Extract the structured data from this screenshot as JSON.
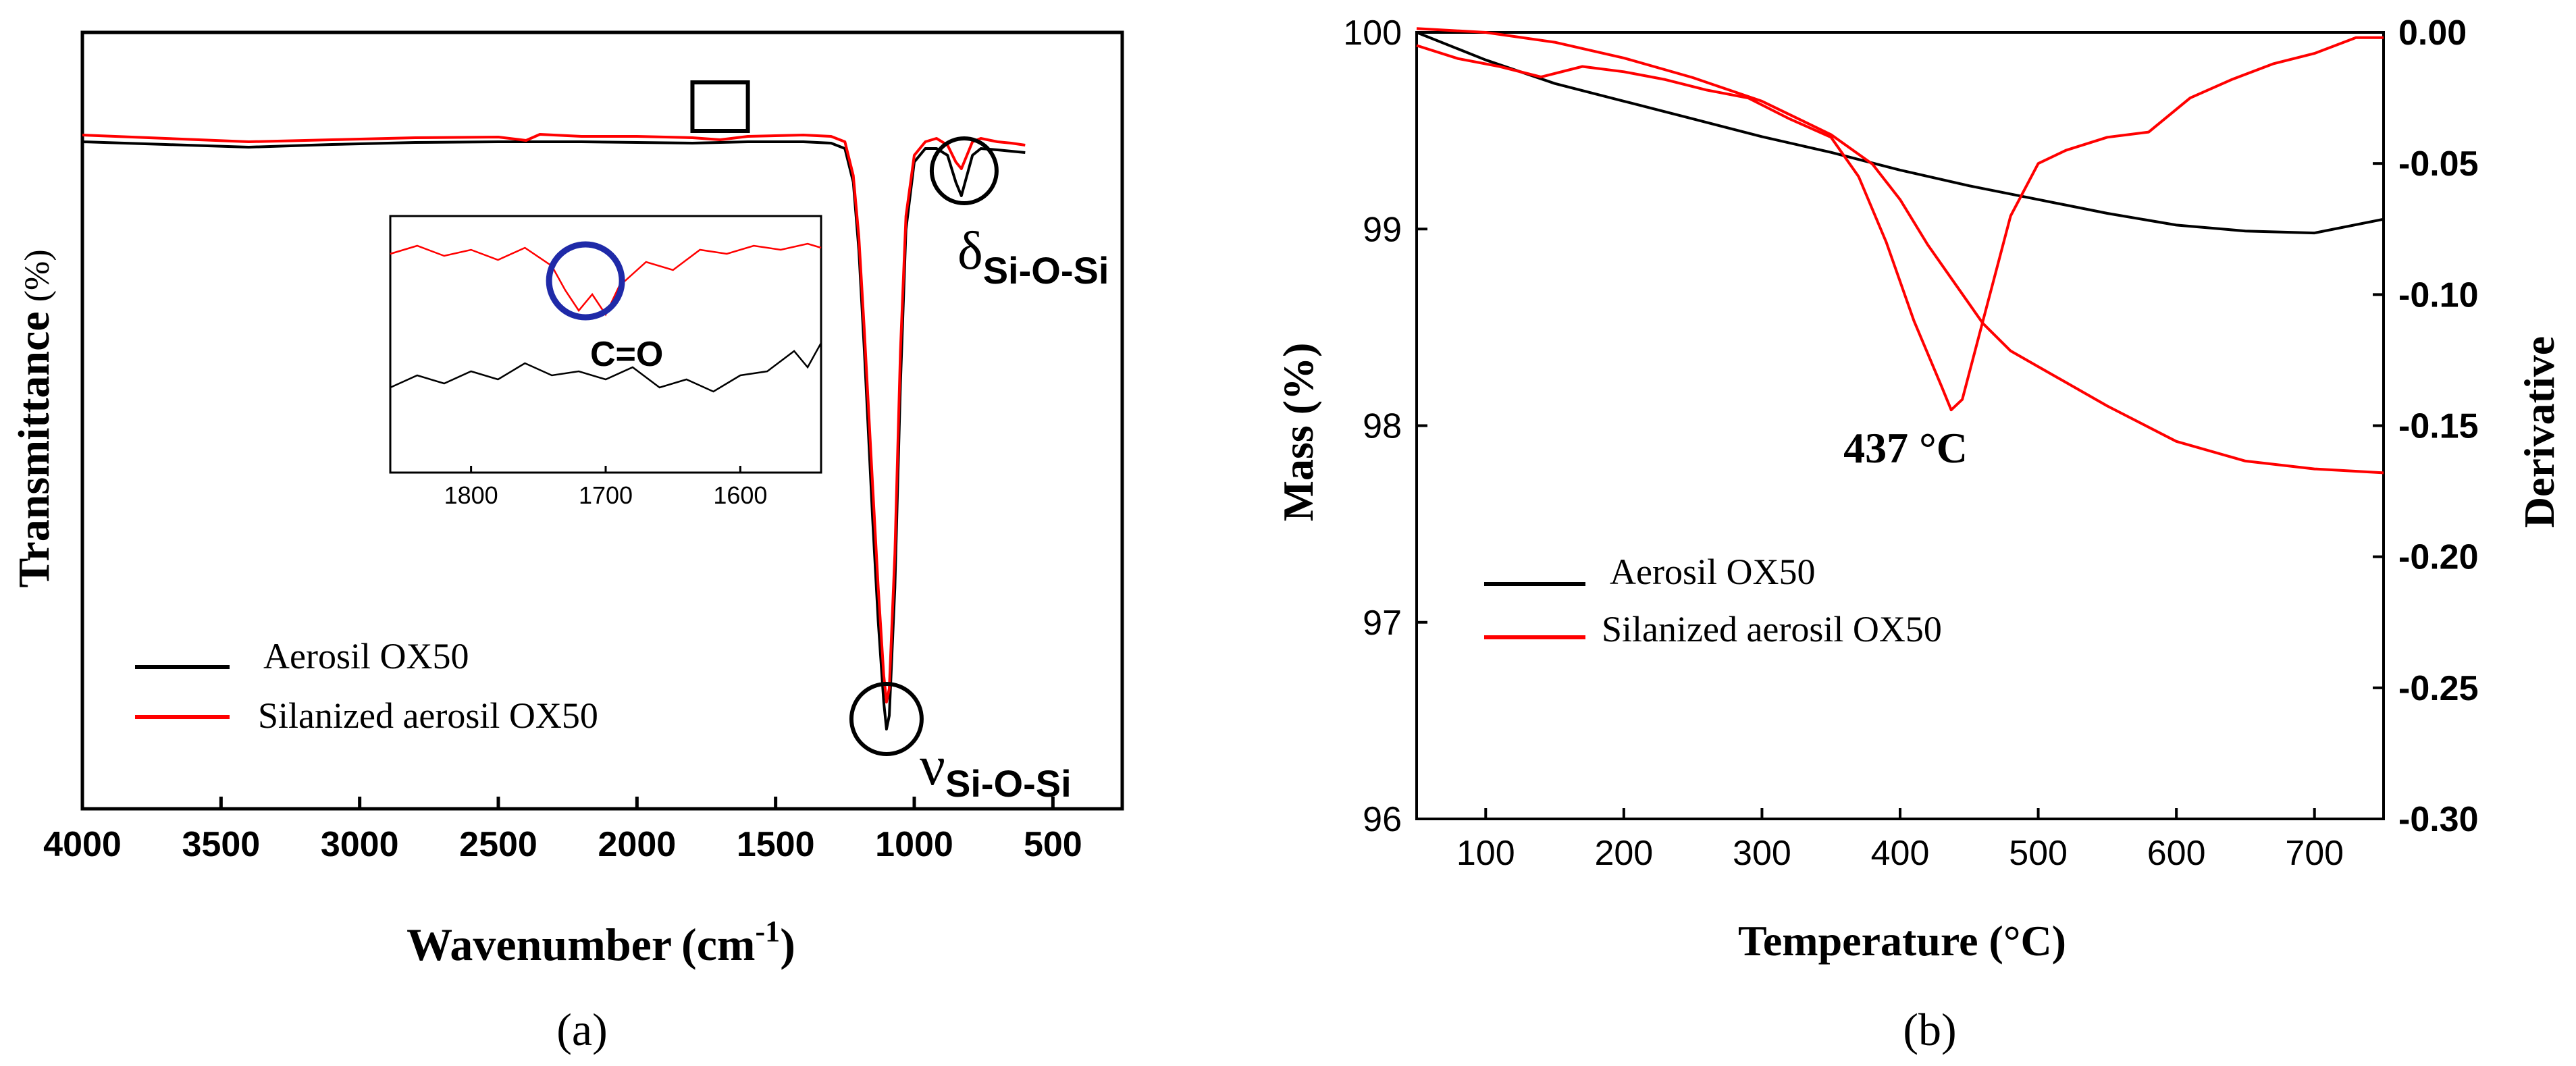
{
  "chart_data": [
    {
      "type": "line",
      "panel_label": "(a)",
      "title": "",
      "xlabel": "Wavenumber",
      "xlabel_unit": "(cm",
      "xlabel_unit_sup": "-1",
      "xlabel_unit_close": ")",
      "ylabel": "Transmittance",
      "ylabel_unit": "(%)",
      "xlim": [
        4000,
        250
      ],
      "ylim": [
        0,
        100
      ],
      "x_ticks": [
        4000,
        3500,
        3000,
        2500,
        2000,
        1500,
        1000,
        500
      ],
      "y_ticks_shown": false,
      "grid": false,
      "legend_position": "lower-left",
      "series": [
        {
          "name": "Aerosil OX50",
          "color": "#000000",
          "x": [
            4000,
            3700,
            3400,
            3100,
            2800,
            2500,
            2200,
            2000,
            1800,
            1600,
            1400,
            1300,
            1250,
            1220,
            1200,
            1180,
            1150,
            1130,
            1110,
            1100,
            1090,
            1070,
            1050,
            1030,
            1000,
            960,
            920,
            880,
            850,
            830,
            810,
            790,
            760,
            700,
            650,
            600
          ],
          "values": [
            91,
            90.6,
            90.2,
            90.6,
            90.9,
            91,
            91,
            90.9,
            90.8,
            91,
            91,
            90.8,
            90,
            85,
            75,
            60,
            35,
            20,
            8,
            4,
            6,
            25,
            55,
            78,
            88,
            90,
            90,
            89,
            85,
            83,
            86,
            89,
            90,
            89.8,
            89.6,
            89.4
          ]
        },
        {
          "name": "Silanized aerosil OX50",
          "color": "#ff0000",
          "x": [
            4000,
            3700,
            3400,
            3100,
            2800,
            2500,
            2400,
            2350,
            2200,
            2000,
            1800,
            1700,
            1600,
            1400,
            1300,
            1250,
            1220,
            1200,
            1180,
            1150,
            1130,
            1110,
            1100,
            1090,
            1070,
            1050,
            1030,
            1000,
            960,
            920,
            880,
            850,
            830,
            810,
            790,
            760,
            700,
            650,
            600
          ],
          "values": [
            92,
            91.5,
            91,
            91.3,
            91.6,
            91.7,
            91.2,
            92.1,
            91.8,
            91.8,
            91.6,
            91.3,
            91.8,
            92,
            91.8,
            91,
            86,
            77,
            63,
            40,
            25,
            12,
            8,
            10,
            30,
            60,
            80,
            89,
            91,
            91.5,
            90.5,
            88,
            87,
            89,
            91,
            91.5,
            91,
            90.8,
            90.5
          ]
        }
      ],
      "annotations": {
        "v_symbol": "ν",
        "v_sub": "Si-O-Si",
        "delta_symbol": "δ",
        "delta_sub": "Si-O-Si",
        "v_wavenumber": 1100,
        "delta_wavenumber": 820,
        "highlight_box_range": [
          1800,
          1600
        ]
      },
      "inset": {
        "annotation": "C=O",
        "xlim": [
          1860,
          1540
        ],
        "x_ticks": [
          1800,
          1700,
          1600
        ],
        "circle_center_wavenumber": 1715,
        "series": [
          {
            "name": "Silanized aerosil OX50",
            "color": "#ff0000",
            "x": [
              1860,
              1840,
              1820,
              1800,
              1780,
              1760,
              1740,
              1730,
              1720,
              1710,
              1700,
              1690,
              1670,
              1650,
              1630,
              1610,
              1590,
              1570,
              1550,
              1540
            ],
            "values": [
              88,
              92,
              87,
              90,
              85,
              91,
              82,
              70,
              60,
              68,
              58,
              72,
              84,
              80,
              90,
              88,
              92,
              90,
              93,
              91
            ]
          },
          {
            "name": "Aerosil OX50",
            "color": "#000000",
            "x": [
              1860,
              1840,
              1820,
              1800,
              1780,
              1760,
              1740,
              1720,
              1700,
              1680,
              1660,
              1640,
              1620,
              1600,
              1580,
              1560,
              1550,
              1545,
              1540
            ],
            "values": [
              22,
              28,
              24,
              30,
              26,
              34,
              28,
              30,
              26,
              32,
              22,
              26,
              20,
              28,
              30,
              40,
              32,
              38,
              44
            ]
          }
        ]
      }
    },
    {
      "type": "line",
      "panel_label": "(b)",
      "title": "",
      "xlabel": "Temperature (°C)",
      "ylabel": "Mass  (%)",
      "y2label": "Derivative",
      "xlim": [
        50,
        750
      ],
      "ylim": [
        96,
        100
      ],
      "y2lim": [
        -0.3,
        0.0
      ],
      "x_ticks": [
        100,
        200,
        300,
        400,
        500,
        600,
        700
      ],
      "y_ticks": [
        96,
        97,
        98,
        99,
        100
      ],
      "y2_ticks": [
        "0.00",
        "-0.05",
        "-0.10",
        "-0.15",
        "-0.20",
        "-0.25",
        "-0.30"
      ],
      "grid": false,
      "legend_position": "middle-left",
      "peak_annotation": "437 °C",
      "peak_temperature": 437,
      "series": [
        {
          "name": "Aerosil OX50",
          "color": "#000000",
          "axis": "mass",
          "x": [
            50,
            100,
            150,
            200,
            250,
            300,
            350,
            400,
            450,
            500,
            550,
            600,
            650,
            700,
            750
          ],
          "values": [
            100.0,
            99.86,
            99.74,
            99.65,
            99.56,
            99.47,
            99.39,
            99.3,
            99.22,
            99.15,
            99.08,
            99.02,
            98.99,
            98.98,
            99.05
          ]
        },
        {
          "name": "Silanized aerosil OX50",
          "color": "#ff0000",
          "axis": "mass",
          "x": [
            50,
            100,
            150,
            200,
            250,
            300,
            350,
            380,
            400,
            420,
            440,
            460,
            480,
            500,
            550,
            600,
            650,
            700,
            750
          ],
          "values": [
            100.02,
            100.0,
            99.95,
            99.87,
            99.77,
            99.65,
            99.48,
            99.33,
            99.15,
            98.92,
            98.72,
            98.52,
            98.38,
            98.3,
            98.1,
            97.92,
            97.82,
            97.78,
            97.76
          ]
        },
        {
          "name": "Silanized aerosil OX50 (derivative)",
          "color": "#ff0000",
          "axis": "derivative",
          "x": [
            50,
            80,
            110,
            140,
            170,
            200,
            230,
            260,
            290,
            320,
            350,
            370,
            390,
            410,
            430,
            437,
            445,
            460,
            480,
            500,
            520,
            550,
            580,
            610,
            640,
            670,
            700,
            730,
            750
          ],
          "values": [
            -0.005,
            -0.01,
            -0.013,
            -0.017,
            -0.013,
            -0.015,
            -0.018,
            -0.022,
            -0.025,
            -0.033,
            -0.04,
            -0.055,
            -0.08,
            -0.11,
            -0.135,
            -0.144,
            -0.14,
            -0.11,
            -0.07,
            -0.05,
            -0.045,
            -0.04,
            -0.038,
            -0.025,
            -0.018,
            -0.012,
            -0.008,
            -0.002,
            -0.002
          ]
        }
      ]
    }
  ]
}
